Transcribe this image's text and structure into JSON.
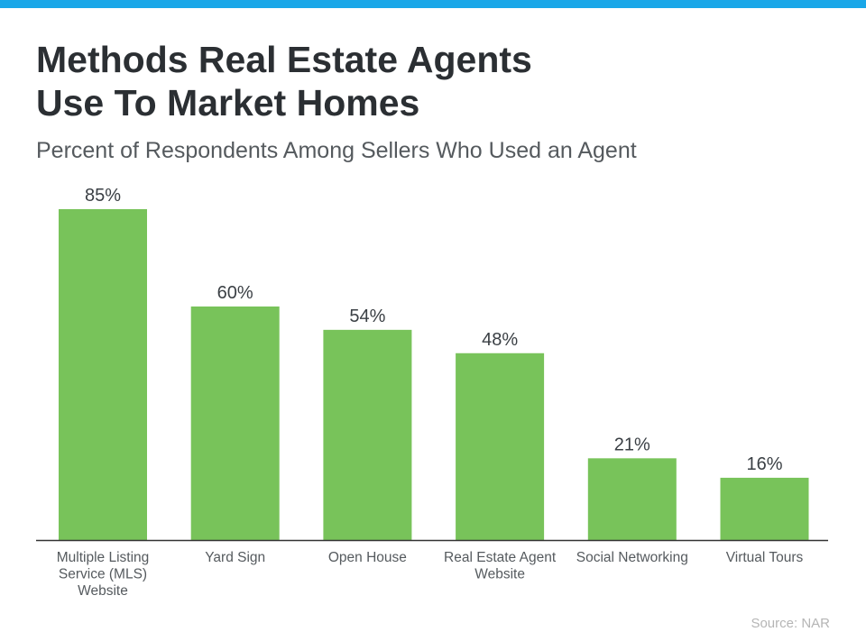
{
  "header": {
    "title_line1": "Methods Real Estate Agents",
    "title_line2": "Use To Market Homes",
    "subtitle": "Percent of Respondents Among Sellers Who Used an Agent"
  },
  "footer": {
    "source": "Source: NAR"
  },
  "colors": {
    "bar": "#78c35a",
    "top_bar": "#1aa7e8",
    "axis": "#333333"
  },
  "chart_data": {
    "type": "bar",
    "title": "Methods Real Estate Agents Use To Market Homes",
    "subtitle": "Percent of Respondents Among Sellers Who Used an Agent",
    "categories": [
      [
        "Multiple Listing",
        "Service (MLS)",
        "Website"
      ],
      [
        "Yard Sign"
      ],
      [
        "Open House"
      ],
      [
        "Real Estate Agent",
        "Website"
      ],
      [
        "Social Networking"
      ],
      [
        "Virtual Tours"
      ]
    ],
    "values": [
      85,
      60,
      54,
      48,
      21,
      16
    ],
    "value_labels": [
      "85%",
      "60%",
      "54%",
      "48%",
      "21%",
      "16%"
    ],
    "ylim": [
      0,
      85
    ],
    "xlabel": "",
    "ylabel": "",
    "grid": false,
    "legend": "none"
  }
}
